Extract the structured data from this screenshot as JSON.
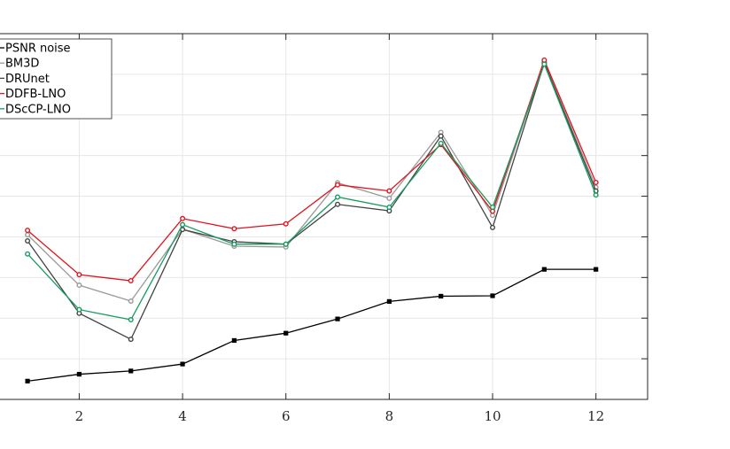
{
  "chart_data": {
    "type": "line",
    "title": "",
    "xlabel": "",
    "ylabel": "",
    "xlim": [
      0.45,
      13.0
    ],
    "ylim": [
      0,
      9.0
    ],
    "grid": true,
    "legend_placement": "top-left",
    "x_ticks": [
      2,
      4,
      6,
      8,
      10,
      12
    ],
    "x": [
      1,
      2,
      3,
      4,
      5,
      6,
      7,
      8,
      9,
      10,
      11,
      12
    ],
    "series": [
      {
        "name": "PSNR noise",
        "color": "#000000",
        "marker": "square",
        "values": [
          0.45,
          0.62,
          0.7,
          0.87,
          1.45,
          1.63,
          1.98,
          2.41,
          2.54,
          2.55,
          3.2,
          3.2
        ]
      },
      {
        "name": "BM3D",
        "color": "#999999",
        "marker": "circle",
        "values": [
          4.05,
          2.81,
          2.42,
          4.19,
          3.77,
          3.75,
          5.33,
          4.95,
          6.57,
          4.53,
          8.3,
          5.22
        ]
      },
      {
        "name": "DRUnet",
        "color": "#444444",
        "marker": "circle",
        "values": [
          3.9,
          2.12,
          1.48,
          4.18,
          3.88,
          3.82,
          4.8,
          4.64,
          6.48,
          4.23,
          8.28,
          5.13
        ]
      },
      {
        "name": "DDFB-LNO",
        "color": "#e0141e",
        "marker": "circle",
        "values": [
          4.16,
          3.07,
          2.92,
          4.45,
          4.2,
          4.32,
          5.28,
          5.13,
          6.27,
          4.63,
          8.35,
          5.34
        ]
      },
      {
        "name": "DScCP-LNO",
        "color": "#159c5e",
        "marker": "circle",
        "values": [
          3.58,
          2.21,
          1.96,
          4.3,
          3.82,
          3.82,
          4.98,
          4.73,
          6.3,
          4.73,
          8.25,
          5.03
        ]
      }
    ]
  }
}
